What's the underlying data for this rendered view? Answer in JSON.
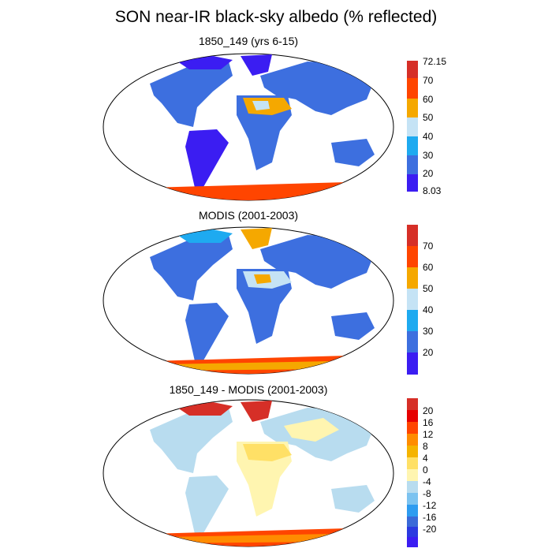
{
  "title": "SON near-IR black-sky albedo (% reflected)",
  "panels": [
    {
      "title": "1850_149 (yrs 6-15)",
      "colorbar": {
        "labels": [
          "72.15",
          "70",
          "60",
          "50",
          "40",
          "30",
          "20",
          "8.03"
        ],
        "colors": [
          "#d62f27",
          "#ff4500",
          "#f5a800",
          "#c5e3f5",
          "#1eaaf0",
          "#3d6fdf",
          "#3b1df2"
        ]
      }
    },
    {
      "title": "MODIS (2001-2003)",
      "colorbar": {
        "labels": [
          "70",
          "60",
          "50",
          "40",
          "30",
          "20"
        ],
        "colors": [
          "#d62f27",
          "#ff4500",
          "#f5a800",
          "#c5e3f5",
          "#1eaaf0",
          "#3d6fdf",
          "#3b1df2"
        ]
      }
    },
    {
      "title": "1850_149 - MODIS (2001-2003)",
      "colorbar": {
        "labels": [
          "20",
          "16",
          "12",
          "8",
          "4",
          "0",
          "-4",
          "-8",
          "-12",
          "-16",
          "-20"
        ],
        "colors": [
          "#d62f27",
          "#e60000",
          "#ff4500",
          "#ff8c00",
          "#f5b400",
          "#ffe066",
          "#fff5b0",
          "#b8dcef",
          "#7cc3f0",
          "#2e9cf0",
          "#3a6ad8",
          "#2b3ae0",
          "#3b1df2"
        ]
      }
    }
  ]
}
